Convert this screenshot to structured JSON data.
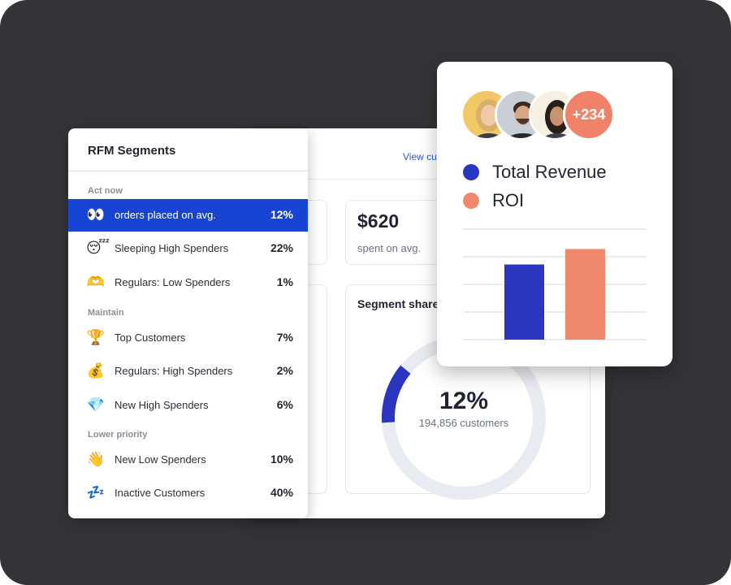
{
  "dashboard": {
    "view_link": "View cu",
    "stat": {
      "value": "$620",
      "label": "spent on avg."
    },
    "segment_share": {
      "title": "Segment share",
      "percent": "12%",
      "customers": "194,856 customers",
      "fraction": 0.12
    }
  },
  "rfm": {
    "title": "RFM Segments",
    "groups": [
      {
        "label": "Act now"
      },
      {
        "label": "Maintain"
      },
      {
        "label": "Lower priority"
      }
    ],
    "items": [
      {
        "icon": "eyes-icon",
        "glyph": "👀",
        "label": "orders placed on avg.",
        "pct": "12%",
        "selected": true
      },
      {
        "icon": "sleeping-face-icon",
        "glyph": "😴",
        "label": "Sleeping High Spenders",
        "pct": "22%"
      },
      {
        "icon": "heart-hands-icon",
        "glyph": "🫶",
        "label": "Regulars: Low Spenders",
        "pct": "1%"
      },
      {
        "icon": "trophy-icon",
        "glyph": "🏆",
        "label": "Top Customers",
        "pct": "7%"
      },
      {
        "icon": "money-bag-icon",
        "glyph": "💰",
        "label": "Regulars: High Spenders",
        "pct": "2%"
      },
      {
        "icon": "gem-icon",
        "glyph": "💎",
        "label": "New High Spenders",
        "pct": "6%"
      },
      {
        "icon": "waving-hand-icon",
        "glyph": "👋",
        "label": "New Low Spenders",
        "pct": "10%"
      },
      {
        "icon": "zzz-icon",
        "glyph": "💤",
        "label": "Inactive Customers",
        "pct": "40%"
      }
    ]
  },
  "popup": {
    "avatars": [
      "avatar-woman-blonde",
      "avatar-man-beard",
      "avatar-woman-dark-hair"
    ],
    "more_count": "+234",
    "legend": [
      {
        "label": "Total Revenue",
        "color": "#2a35c0"
      },
      {
        "label": "ROI",
        "color": "#f0896c"
      }
    ]
  },
  "chart_data": {
    "type": "bar",
    "categories": [
      "Total Revenue",
      "ROI"
    ],
    "values": [
      3.4,
      4.1
    ],
    "ylim": [
      0,
      5
    ],
    "grid": true,
    "colors": [
      "#2a35c0",
      "#f0896c"
    ]
  },
  "colors": {
    "background": "#323437",
    "accent": "#1744d2",
    "donut": "#2a35c0",
    "donut_track": "#e9ebf2"
  }
}
